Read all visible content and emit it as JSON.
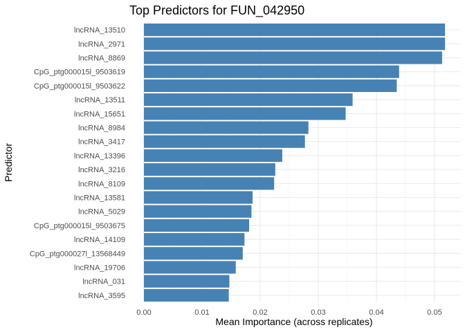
{
  "chart_data": {
    "type": "bar",
    "orientation": "horizontal",
    "title": "Top Predictors for FUN_042950",
    "xlabel": "Mean Importance (across replicates)",
    "ylabel": "Predictor",
    "xlim": [
      0,
      0.0525
    ],
    "x_ticks": [
      "0.00",
      "0.01",
      "0.02",
      "0.03",
      "0.04",
      "0.05"
    ],
    "x_tick_values": [
      0,
      0.01,
      0.02,
      0.03,
      0.04,
      0.05
    ],
    "grid": true,
    "bar_color": "#4682b4",
    "categories": [
      "lncRNA_13510",
      "lncRNA_2971",
      "lncRNA_8869",
      "CpG_ptg000015l_9503619",
      "CpG_ptg000015l_9503622",
      "lncRNA_13511",
      "lncRNA_15651",
      "lncRNA_8984",
      "lncRNA_3417",
      "lncRNA_13396",
      "lncRNA_3216",
      "lncRNA_8109",
      "lncRNA_13581",
      "lncRNA_5029",
      "CpG_ptg000015l_9503675",
      "lncRNA_14109",
      "CpG_ptg000027l_13568449",
      "lncRNA_19706",
      "lncRNA_031",
      "lncRNA_3595"
    ],
    "values": [
      0.0518,
      0.0518,
      0.0513,
      0.0439,
      0.0435,
      0.0359,
      0.0347,
      0.0283,
      0.0277,
      0.0238,
      0.0226,
      0.0224,
      0.0187,
      0.0185,
      0.0181,
      0.0173,
      0.017,
      0.0158,
      0.0147,
      0.0146
    ]
  }
}
